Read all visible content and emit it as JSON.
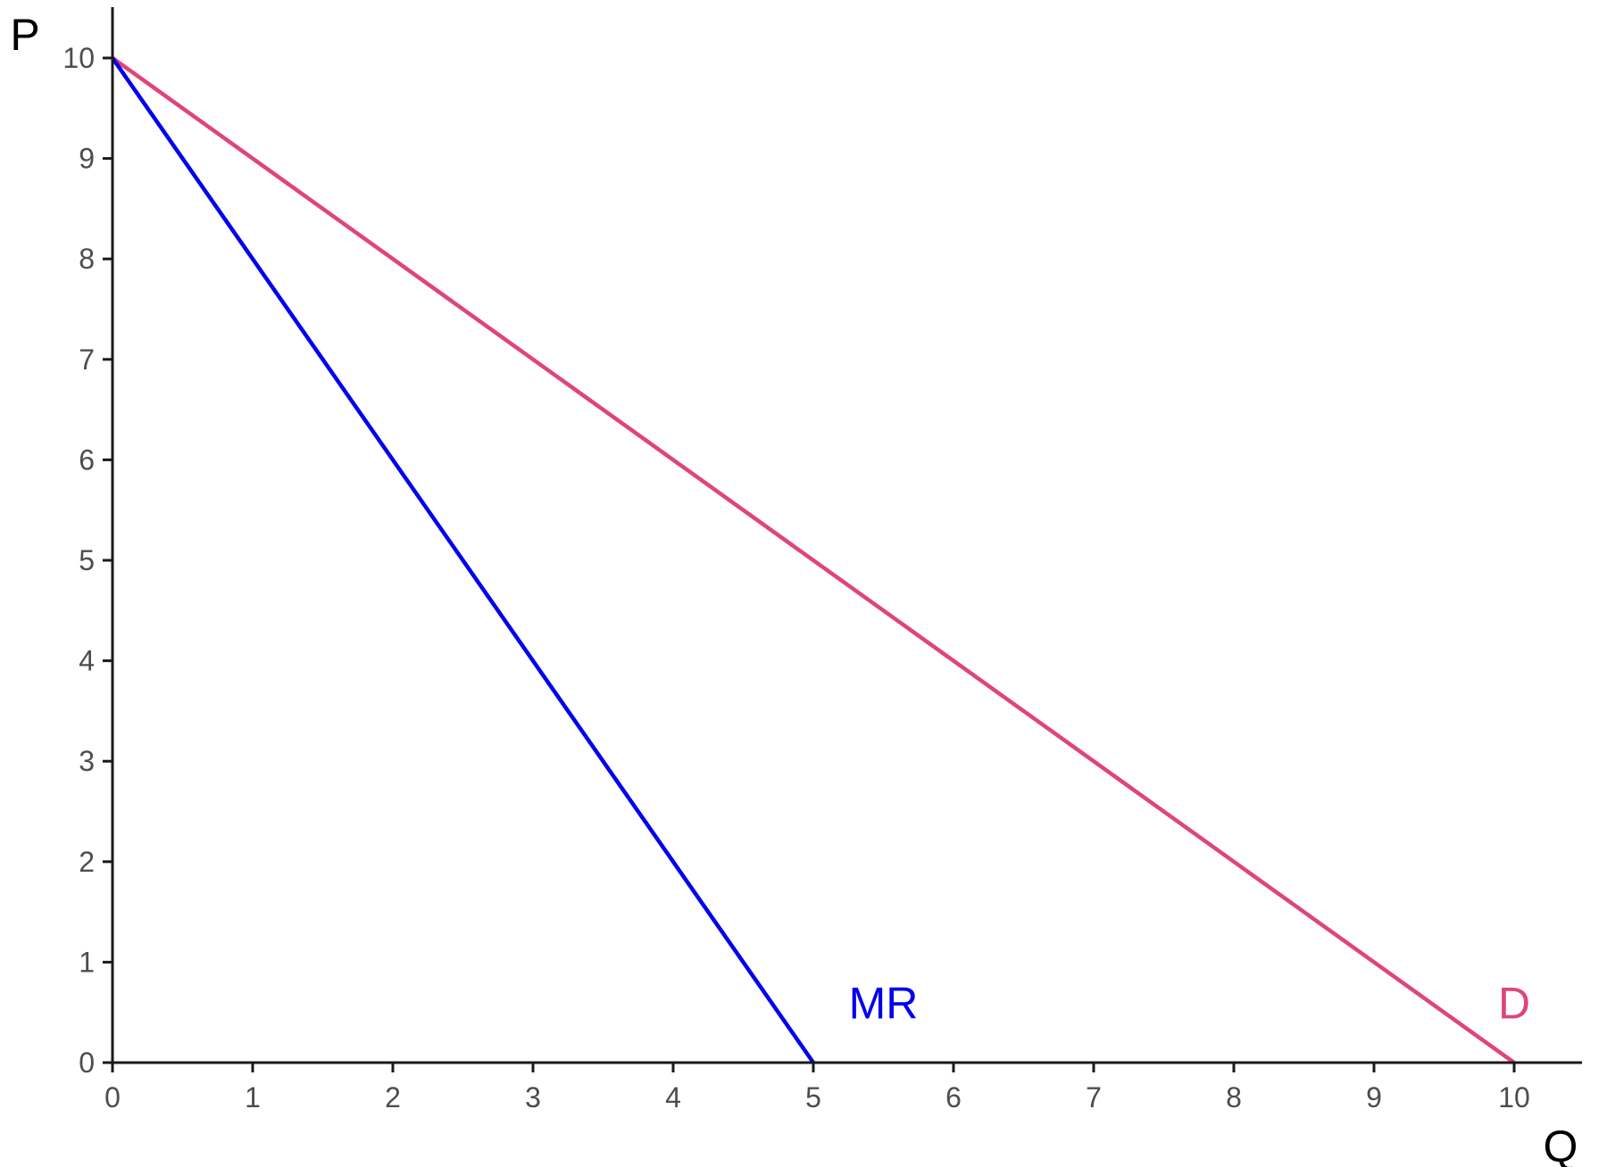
{
  "chart_data": {
    "type": "line",
    "title": "",
    "xlabel": "Q",
    "ylabel": "P",
    "xlim": [
      0,
      10.5
    ],
    "ylim": [
      0,
      10.5
    ],
    "x_ticks": [
      0,
      1,
      2,
      3,
      4,
      5,
      6,
      7,
      8,
      9,
      10
    ],
    "y_ticks": [
      0,
      1,
      2,
      3,
      4,
      5,
      6,
      7,
      8,
      9,
      10
    ],
    "grid": false,
    "legend": "none",
    "series": [
      {
        "name": "D",
        "color": "#e0447c",
        "points": [
          [
            0,
            10
          ],
          [
            10,
            0
          ]
        ]
      },
      {
        "name": "MR",
        "color": "#0000ee",
        "points": [
          [
            0,
            10
          ],
          [
            5,
            0
          ]
        ]
      }
    ],
    "annotations": [
      {
        "text": "MR",
        "series": "MR",
        "x": 5.5,
        "y": 0.6
      },
      {
        "text": "D",
        "series": "D",
        "x": 10,
        "y": 0.6
      }
    ]
  }
}
